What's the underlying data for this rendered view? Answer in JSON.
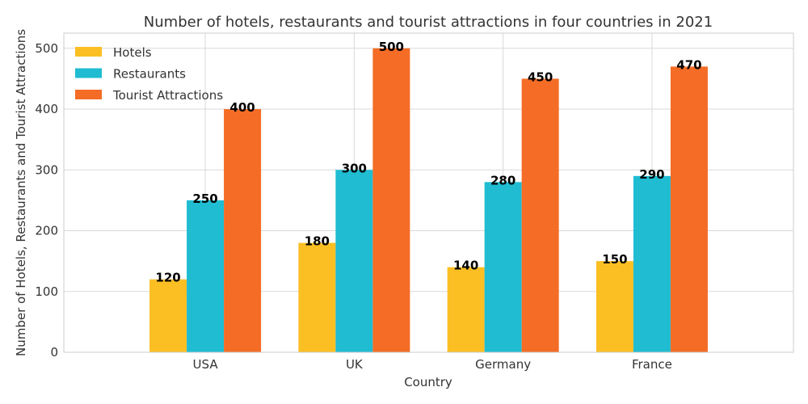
{
  "chart_data": {
    "type": "bar",
    "title": "Number of hotels, restaurants and tourist attractions in four countries in 2021",
    "xlabel": "Country",
    "ylabel": "Number of Hotels, Restaurants and Tourist Attractions",
    "categories": [
      "USA",
      "UK",
      "Germany",
      "France"
    ],
    "series": [
      {
        "name": "Hotels",
        "values": [
          120,
          180,
          140,
          150
        ],
        "color": "#FCBF23"
      },
      {
        "name": "Restaurants",
        "values": [
          250,
          300,
          280,
          290
        ],
        "color": "#1FBCD2"
      },
      {
        "name": "Tourist Attractions",
        "values": [
          400,
          500,
          450,
          470
        ],
        "color": "#F46C26"
      }
    ],
    "ylim": [
      0,
      525
    ],
    "yticks": [
      0,
      100,
      200,
      300,
      400,
      500
    ],
    "grid": true,
    "legend_position": "top-left",
    "data_labels": true
  }
}
